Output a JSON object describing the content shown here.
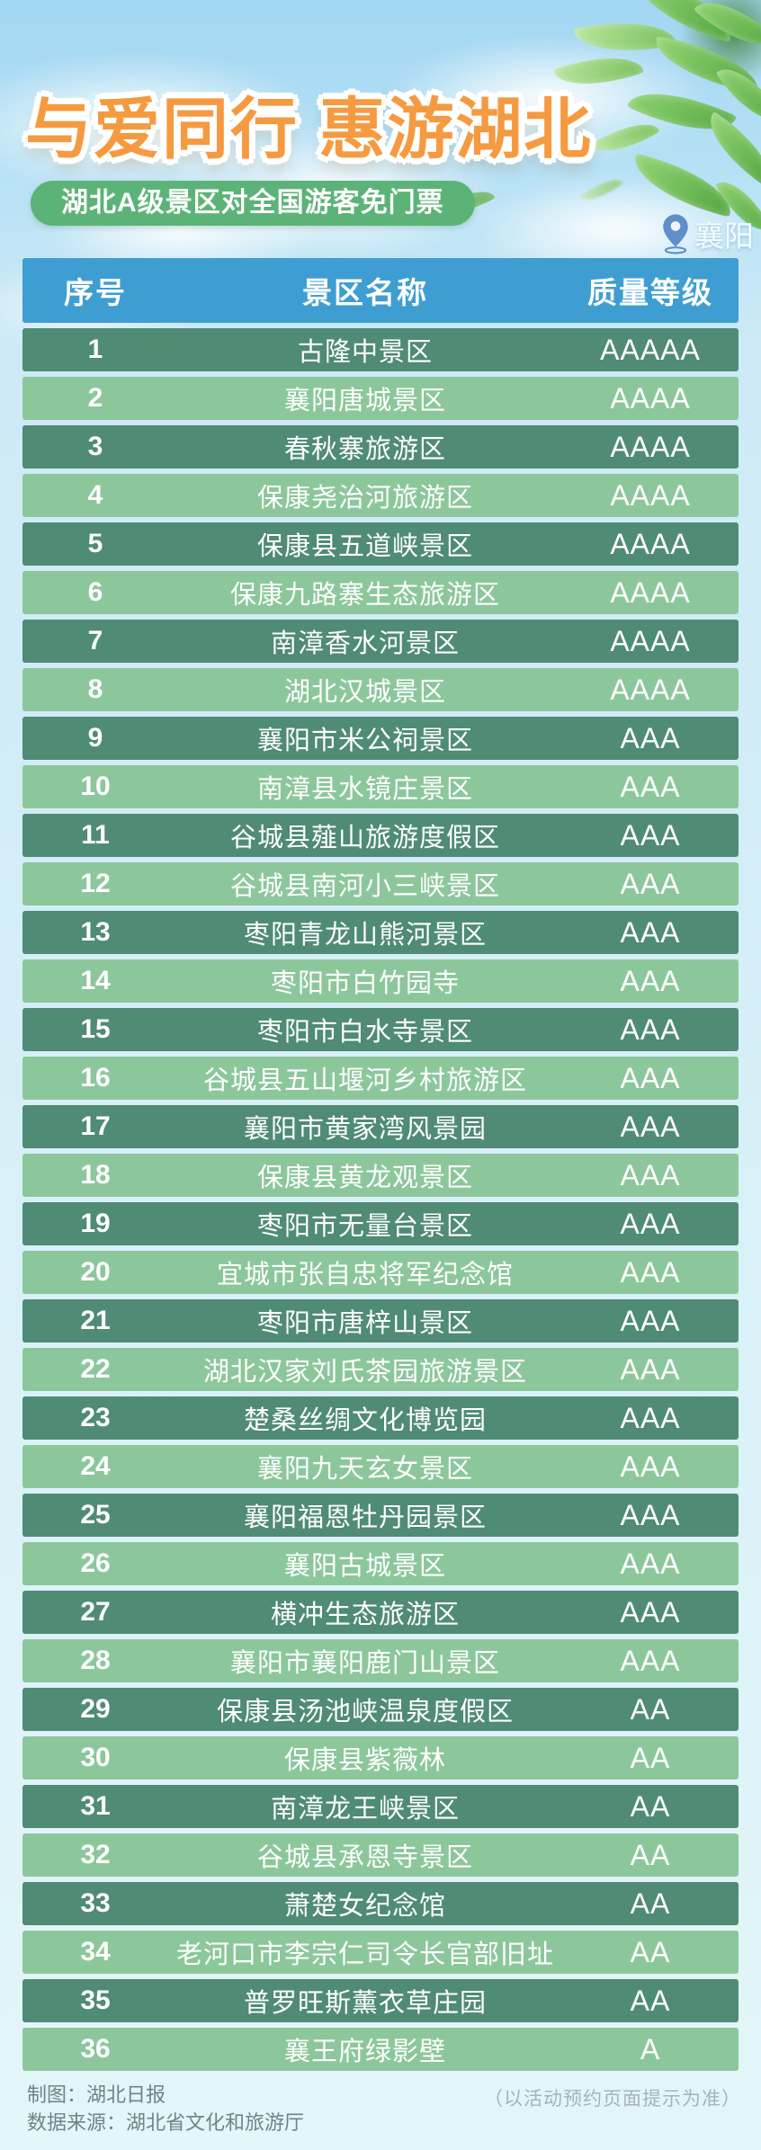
{
  "title": "与爱同行 惠游湖北",
  "subtitle": "湖北A级景区对全国游客免门票",
  "location": {
    "label": "襄阳"
  },
  "table": {
    "headers": {
      "index": "序号",
      "name": "景区名称",
      "grade": "质量等级"
    },
    "rows": [
      {
        "index": "1",
        "name": "古隆中景区",
        "grade": "AAAAA"
      },
      {
        "index": "2",
        "name": "襄阳唐城景区",
        "grade": "AAAA"
      },
      {
        "index": "3",
        "name": "春秋寨旅游区",
        "grade": "AAAA"
      },
      {
        "index": "4",
        "name": "保康尧治河旅游区",
        "grade": "AAAA"
      },
      {
        "index": "5",
        "name": "保康县五道峡景区",
        "grade": "AAAA"
      },
      {
        "index": "6",
        "name": "保康九路寨生态旅游区",
        "grade": "AAAA"
      },
      {
        "index": "7",
        "name": "南漳香水河景区",
        "grade": "AAAA"
      },
      {
        "index": "8",
        "name": "湖北汉城景区",
        "grade": "AAAA"
      },
      {
        "index": "9",
        "name": "襄阳市米公祠景区",
        "grade": "AAA"
      },
      {
        "index": "10",
        "name": "南漳县水镜庄景区",
        "grade": "AAA"
      },
      {
        "index": "11",
        "name": "谷城县薤山旅游度假区",
        "grade": "AAA"
      },
      {
        "index": "12",
        "name": "谷城县南河小三峡景区",
        "grade": "AAA"
      },
      {
        "index": "13",
        "name": "枣阳青龙山熊河景区",
        "grade": "AAA"
      },
      {
        "index": "14",
        "name": "枣阳市白竹园寺",
        "grade": "AAA"
      },
      {
        "index": "15",
        "name": "枣阳市白水寺景区",
        "grade": "AAA"
      },
      {
        "index": "16",
        "name": "谷城县五山堰河乡村旅游区",
        "grade": "AAA"
      },
      {
        "index": "17",
        "name": "襄阳市黄家湾风景园",
        "grade": "AAA"
      },
      {
        "index": "18",
        "name": "保康县黄龙观景区",
        "grade": "AAA"
      },
      {
        "index": "19",
        "name": "枣阳市无量台景区",
        "grade": "AAA"
      },
      {
        "index": "20",
        "name": "宜城市张自忠将军纪念馆",
        "grade": "AAA"
      },
      {
        "index": "21",
        "name": "枣阳市唐梓山景区",
        "grade": "AAA"
      },
      {
        "index": "22",
        "name": "湖北汉家刘氏茶园旅游景区",
        "grade": "AAA"
      },
      {
        "index": "23",
        "name": "楚桑丝绸文化博览园",
        "grade": "AAA"
      },
      {
        "index": "24",
        "name": "襄阳九天玄女景区",
        "grade": "AAA"
      },
      {
        "index": "25",
        "name": "襄阳福恩牡丹园景区",
        "grade": "AAA"
      },
      {
        "index": "26",
        "name": "襄阳古城景区",
        "grade": "AAA"
      },
      {
        "index": "27",
        "name": "横冲生态旅游区",
        "grade": "AAA"
      },
      {
        "index": "28",
        "name": "襄阳市襄阳鹿门山景区",
        "grade": "AAA"
      },
      {
        "index": "29",
        "name": "保康县汤池峡温泉度假区",
        "grade": "AA"
      },
      {
        "index": "30",
        "name": "保康县紫薇林",
        "grade": "AA"
      },
      {
        "index": "31",
        "name": "南漳龙王峡景区",
        "grade": "AA"
      },
      {
        "index": "32",
        "name": "谷城县承恩寺景区",
        "grade": "AA"
      },
      {
        "index": "33",
        "name": "萧楚女纪念馆",
        "grade": "AA"
      },
      {
        "index": "34",
        "name": "老河口市李宗仁司令长官部旧址",
        "grade": "AA"
      },
      {
        "index": "35",
        "name": "普罗旺斯薰衣草庄园",
        "grade": "AA"
      },
      {
        "index": "36",
        "name": "襄王府绿影壁",
        "grade": "A"
      }
    ]
  },
  "footer": {
    "credit": "制图：湖北日报",
    "source": "数据来源：湖北省文化和旅游厅",
    "note": "（以活动预约页面提示为准）"
  },
  "colors": {
    "accent_orange": "#f59a40",
    "header_blue": "#3f9ed1",
    "row_dark": "#4f8b75",
    "row_light": "#8cc79c",
    "pill_green": "#5cb377",
    "pin_blue": "#5e8fc9"
  }
}
